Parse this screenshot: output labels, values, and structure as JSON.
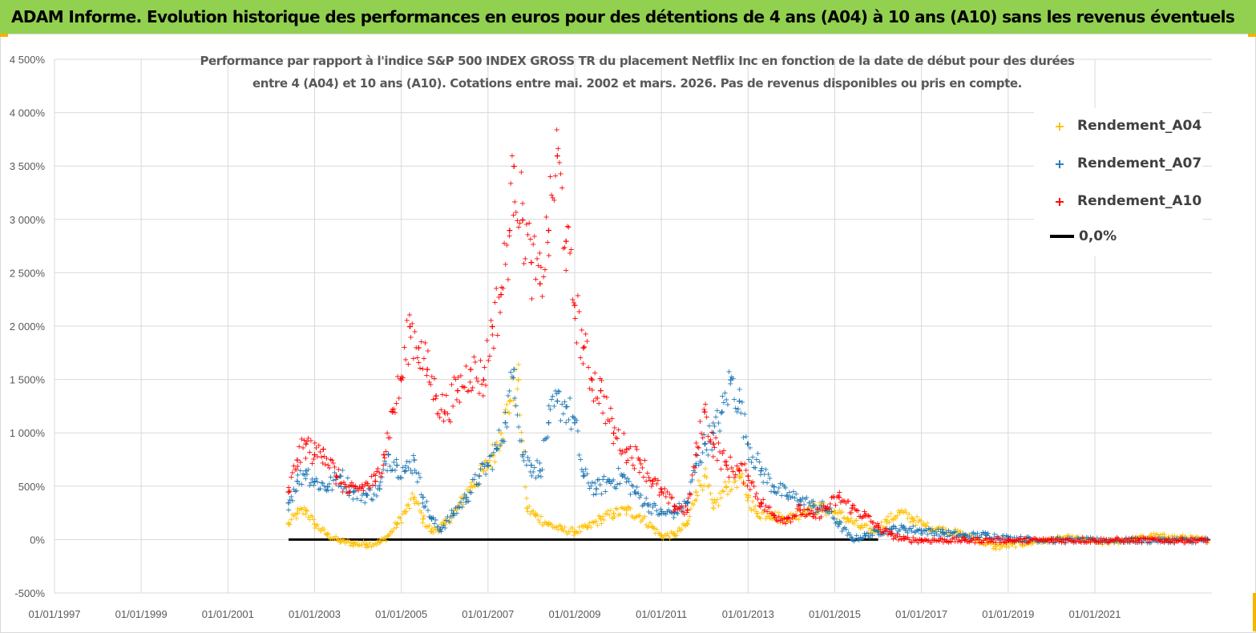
{
  "banner": {
    "title": "ADAM Informe. Evolution historique des performances en euros pour des détentions de 4 ans (A04) à 10 ans (A10) sans les revenus éventuels"
  },
  "colors": {
    "banner": "#92d050",
    "a04": "#ffc000",
    "a07": "#1f77b4",
    "a10": "#ff0000",
    "zero": "#000000",
    "grid": "#d9d9d9"
  },
  "chart_data": {
    "type": "scatter",
    "title_line1": "Performance par rapport à l'indice S&P 500 INDEX GROSS TR  du placement Netflix Inc en fonction de la date de début pour des durées",
    "title_line2": "entre 4 (A04) et 10 ans (A10). Cotations entre mai. 2002 et mars. 2026. Pas de revenus disponibles ou pris en compte.",
    "xlim": [
      1997.0,
      2023.7
    ],
    "ylim": [
      -500,
      4500
    ],
    "y_ticks": [
      -500,
      0,
      500,
      1000,
      1500,
      2000,
      2500,
      3000,
      3500,
      4000,
      4500
    ],
    "y_tick_labels": [
      "-500%",
      "0%",
      "500%",
      "1 000%",
      "1 500%",
      "2 000%",
      "2 500%",
      "3 000%",
      "3 500%",
      "4 000%",
      "4 500%"
    ],
    "x_ticks": [
      1997,
      1999,
      2001,
      2003,
      2005,
      2007,
      2009,
      2011,
      2013,
      2015,
      2017,
      2019,
      2021
    ],
    "x_tick_labels": [
      "01/01/1997",
      "01/01/1999",
      "01/01/2001",
      "01/01/2003",
      "01/01/2005",
      "01/01/2007",
      "01/01/2009",
      "01/01/2011",
      "01/01/2013",
      "01/01/2015",
      "01/01/2017",
      "01/01/2019",
      "01/01/2021"
    ],
    "series": [
      {
        "name": "Rendement_A04",
        "x": [
          2002.4,
          2002.6,
          2002.8,
          2003.0,
          2003.3,
          2003.6,
          2003.9,
          2004.2,
          2004.5,
          2004.7,
          2004.9,
          2005.1,
          2005.3,
          2005.5,
          2005.7,
          2006.0,
          2006.3,
          2006.6,
          2006.9,
          2007.1,
          2007.3,
          2007.5,
          2007.7,
          2007.9,
          2008.1,
          2008.4,
          2008.7,
          2009.0,
          2009.3,
          2009.6,
          2009.9,
          2010.2,
          2010.5,
          2010.8,
          2011.0,
          2011.3,
          2011.6,
          2011.8,
          2012.0,
          2012.2,
          2012.5,
          2012.8,
          2013.0,
          2013.2,
          2013.5,
          2013.8,
          2014.1,
          2014.4,
          2014.7,
          2015.0,
          2015.3,
          2015.6,
          2015.9,
          2016.2,
          2016.5,
          2016.8,
          2017.1,
          2017.5,
          2017.9,
          2018.3,
          2018.7,
          2019.1,
          2019.5,
          2019.9,
          2020.3,
          2020.7,
          2021.1,
          2021.5,
          2021.9,
          2022.3,
          2022.7,
          2023.1,
          2023.6
        ],
        "values": [
          150,
          250,
          280,
          150,
          50,
          -10,
          -30,
          -40,
          -20,
          40,
          150,
          270,
          400,
          200,
          80,
          150,
          300,
          500,
          650,
          800,
          1000,
          1300,
          1500,
          300,
          230,
          150,
          100,
          80,
          120,
          200,
          250,
          280,
          230,
          120,
          40,
          50,
          150,
          450,
          600,
          300,
          500,
          600,
          400,
          250,
          250,
          200,
          230,
          300,
          300,
          260,
          200,
          120,
          90,
          180,
          260,
          200,
          130,
          100,
          60,
          0,
          -60,
          -40,
          -20,
          0,
          20,
          10,
          -20,
          -10,
          10,
          40,
          30,
          20,
          0
        ]
      },
      {
        "name": "Rendement_A07",
        "x": [
          2002.4,
          2002.6,
          2002.8,
          2003.0,
          2003.3,
          2003.6,
          2003.9,
          2004.2,
          2004.5,
          2004.7,
          2004.9,
          2005.1,
          2005.3,
          2005.5,
          2005.7,
          2005.9,
          2006.2,
          2006.5,
          2006.8,
          2007.0,
          2007.2,
          2007.4,
          2007.6,
          2007.8,
          2008.0,
          2008.2,
          2008.4,
          2008.6,
          2008.8,
          2009.0,
          2009.2,
          2009.5,
          2009.8,
          2010.1,
          2010.4,
          2010.7,
          2011.0,
          2011.3,
          2011.6,
          2011.8,
          2012.0,
          2012.2,
          2012.4,
          2012.6,
          2012.8,
          2013.0,
          2013.3,
          2013.6,
          2013.9,
          2014.2,
          2014.5,
          2014.8,
          2015.1,
          2015.4,
          2015.7,
          2016.0,
          2016.3,
          2016.6,
          2017.0,
          2017.5,
          2018.0,
          2018.5,
          2019.0,
          2019.5,
          2020.0,
          2021.0,
          2022.0,
          2023.0,
          2023.6
        ],
        "values": [
          350,
          550,
          650,
          550,
          500,
          600,
          450,
          420,
          480,
          800,
          700,
          650,
          750,
          400,
          200,
          100,
          250,
          400,
          600,
          700,
          850,
          1100,
          1600,
          800,
          700,
          650,
          1100,
          1300,
          1250,
          1100,
          600,
          480,
          550,
          600,
          450,
          330,
          250,
          260,
          350,
          700,
          900,
          1000,
          1200,
          1500,
          1300,
          900,
          650,
          500,
          420,
          380,
          320,
          300,
          150,
          10,
          40,
          80,
          100,
          110,
          90,
          70,
          40,
          50,
          20,
          10,
          0,
          0,
          0,
          0,
          0
        ]
      },
      {
        "name": "Rendement_A10",
        "x": [
          2002.4,
          2002.6,
          2002.8,
          2003.0,
          2003.2,
          2003.5,
          2003.8,
          2004.1,
          2004.4,
          2004.6,
          2004.8,
          2005.0,
          2005.2,
          2005.4,
          2005.6,
          2005.8,
          2006.0,
          2006.3,
          2006.6,
          2006.9,
          2007.1,
          2007.3,
          2007.5,
          2007.6,
          2007.8,
          2008.0,
          2008.2,
          2008.4,
          2008.6,
          2008.8,
          2009.0,
          2009.2,
          2009.4,
          2009.6,
          2009.9,
          2010.2,
          2010.5,
          2010.8,
          2011.0,
          2011.3,
          2011.6,
          2011.8,
          2012.0,
          2012.2,
          2012.5,
          2012.8,
          2013.0,
          2013.3,
          2013.6,
          2013.9,
          2014.2,
          2014.5,
          2014.8,
          2015.1,
          2015.4,
          2015.7,
          2016.0,
          2016.3,
          2016.6,
          2017.0,
          2018.0,
          2019.0,
          2020.0,
          2021.0,
          2022.0,
          2023.0,
          2023.6
        ],
        "values": [
          450,
          750,
          900,
          800,
          850,
          600,
          450,
          500,
          550,
          800,
          1200,
          1500,
          2000,
          1800,
          1600,
          1350,
          1200,
          1400,
          1600,
          1500,
          2000,
          2300,
          2900,
          3500,
          3000,
          2600,
          2400,
          2900,
          3600,
          2800,
          2200,
          1800,
          1500,
          1400,
          1000,
          850,
          750,
          550,
          450,
          320,
          280,
          800,
          1200,
          900,
          700,
          650,
          600,
          350,
          230,
          200,
          280,
          220,
          300,
          400,
          300,
          230,
          120,
          50,
          10,
          0,
          0,
          0,
          0,
          0,
          0,
          0,
          0
        ]
      }
    ],
    "zero_line": {
      "name": "0,0%",
      "x": [
        2002.4,
        2016.0
      ],
      "y": [
        0,
        0
      ]
    },
    "grid": true,
    "legend_position": "top-right"
  }
}
